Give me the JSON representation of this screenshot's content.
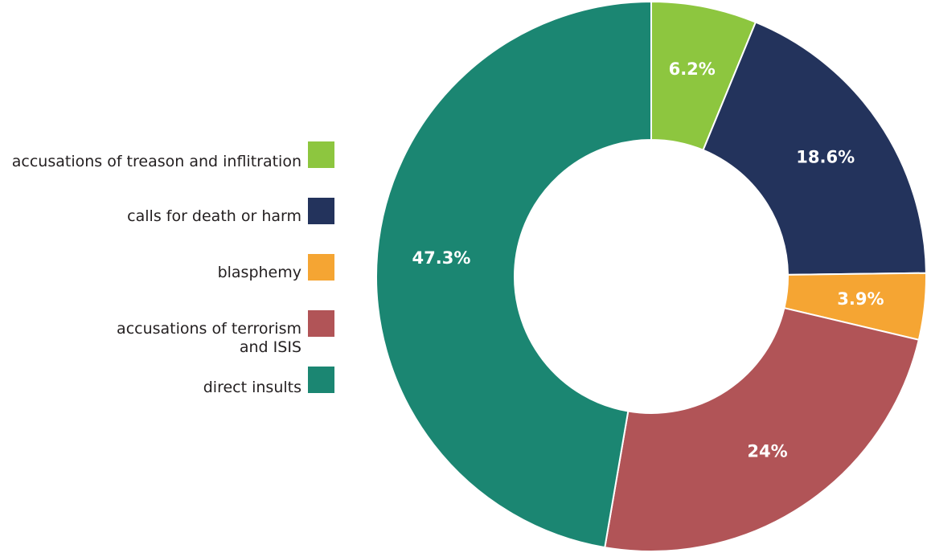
{
  "chart_data": {
    "type": "pie",
    "donut": true,
    "legend_position": "left",
    "slices": [
      {
        "label": "accusations of treason and inflitration",
        "value": 6.2,
        "display": "6.2%",
        "color": "#8dc63f"
      },
      {
        "label": "calls for death or harm",
        "value": 18.6,
        "display": "18.6%",
        "color": "#23335c"
      },
      {
        "label": "blasphemy",
        "value": 3.9,
        "display": "3.9%",
        "color": "#f5a533"
      },
      {
        "label": "accusations of terrorism and ISIS",
        "value": 24,
        "display": "24%",
        "color": "#b15457"
      },
      {
        "label": "direct insults",
        "value": 47.3,
        "display": "47.3%",
        "color": "#1b8672"
      }
    ]
  },
  "legend": {
    "items": [
      {
        "line1": "accusations of treason and inflitration",
        "line2": ""
      },
      {
        "line1": "calls for death or harm",
        "line2": ""
      },
      {
        "line1": "blasphemy",
        "line2": ""
      },
      {
        "line1": "accusations of terrorism",
        "line2": "and ISIS"
      },
      {
        "line1": "direct insults",
        "line2": ""
      }
    ]
  }
}
